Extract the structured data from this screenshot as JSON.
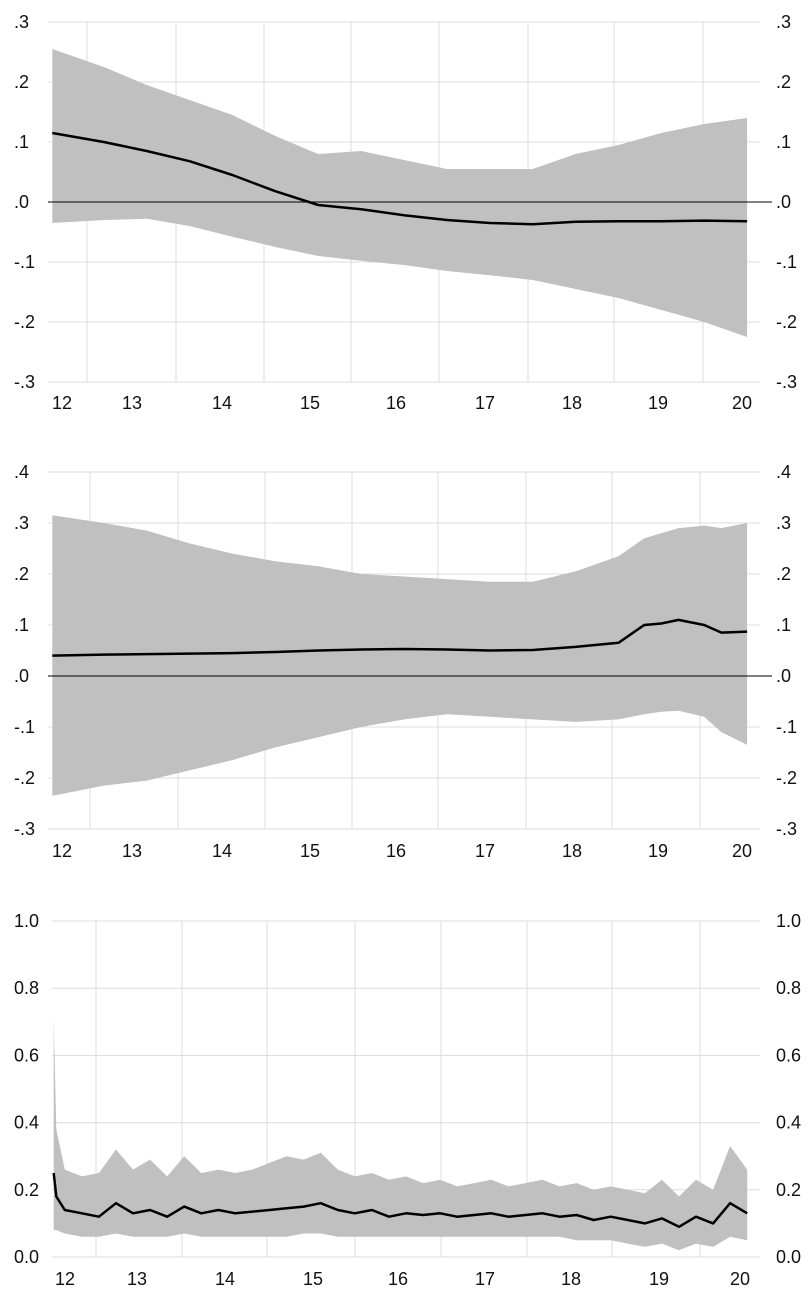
{
  "chart_data": [
    {
      "type": "area",
      "x_ticks": [
        "12",
        "13",
        "14",
        "15",
        "16",
        "17",
        "18",
        "19",
        "20"
      ],
      "y_ticks": [
        ".3",
        ".2",
        ".1",
        ".0",
        "-.1",
        "-.2",
        "-.3"
      ],
      "y_tick_values": [
        0.3,
        0.2,
        0.1,
        0.0,
        -0.1,
        -0.2,
        -0.3
      ],
      "ylim": [
        -0.3,
        0.3
      ],
      "xlim": [
        11.85,
        20.15
      ],
      "zero_line": true,
      "grid": true,
      "colors": {
        "band": "#c0c0c0",
        "line": "#000000",
        "grid": "#dcdcdc"
      },
      "series": [
        {
          "x": [
            11.9,
            12.5,
            13.0,
            13.5,
            14.0,
            14.5,
            15.0,
            15.5,
            16.0,
            16.5,
            17.0,
            17.5,
            18.0,
            18.5,
            19.0,
            19.5,
            20.0
          ],
          "value": [
            0.115,
            0.1,
            0.085,
            0.068,
            0.045,
            0.018,
            -0.005,
            -0.012,
            -0.022,
            -0.03,
            -0.035,
            -0.037,
            -0.033,
            -0.032,
            -0.032,
            -0.031,
            -0.032
          ],
          "upper": [
            0.255,
            0.225,
            0.195,
            0.17,
            0.145,
            0.11,
            0.08,
            0.085,
            0.07,
            0.055,
            0.055,
            0.055,
            0.08,
            0.095,
            0.115,
            0.13,
            0.14
          ],
          "lower": [
            -0.035,
            -0.03,
            -0.028,
            -0.04,
            -0.058,
            -0.075,
            -0.09,
            -0.098,
            -0.105,
            -0.115,
            -0.122,
            -0.13,
            -0.145,
            -0.16,
            -0.18,
            -0.2,
            -0.225
          ]
        }
      ]
    },
    {
      "type": "area",
      "x_ticks": [
        "12",
        "13",
        "14",
        "15",
        "16",
        "17",
        "18",
        "19",
        "20"
      ],
      "y_ticks": [
        ".4",
        ".3",
        ".2",
        ".1",
        ".0",
        "-.1",
        "-.2",
        "-.3"
      ],
      "y_tick_values": [
        0.4,
        0.3,
        0.2,
        0.1,
        0.0,
        -0.1,
        -0.2,
        -0.3
      ],
      "ylim": [
        -0.3,
        0.4
      ],
      "xlim": [
        11.85,
        20.15
      ],
      "zero_line": true,
      "grid": true,
      "colors": {
        "band": "#c0c0c0",
        "line": "#000000",
        "grid": "#dcdcdc"
      },
      "series": [
        {
          "x": [
            11.9,
            12.5,
            13.0,
            13.5,
            14.0,
            14.5,
            15.0,
            15.5,
            16.0,
            16.5,
            17.0,
            17.5,
            18.0,
            18.5,
            18.8,
            19.0,
            19.2,
            19.5,
            19.7,
            20.0
          ],
          "value": [
            0.04,
            0.042,
            0.043,
            0.044,
            0.045,
            0.047,
            0.05,
            0.052,
            0.053,
            0.052,
            0.05,
            0.051,
            0.057,
            0.065,
            0.1,
            0.103,
            0.11,
            0.1,
            0.085,
            0.087
          ],
          "upper": [
            0.315,
            0.3,
            0.285,
            0.26,
            0.24,
            0.225,
            0.215,
            0.2,
            0.195,
            0.19,
            0.185,
            0.185,
            0.205,
            0.235,
            0.27,
            0.28,
            0.29,
            0.295,
            0.29,
            0.3
          ],
          "lower": [
            -0.235,
            -0.215,
            -0.205,
            -0.185,
            -0.165,
            -0.14,
            -0.12,
            -0.1,
            -0.085,
            -0.075,
            -0.08,
            -0.085,
            -0.09,
            -0.085,
            -0.075,
            -0.07,
            -0.068,
            -0.08,
            -0.11,
            -0.135
          ]
        }
      ]
    },
    {
      "type": "area",
      "x_ticks": [
        "12",
        "13",
        "14",
        "15",
        "16",
        "17",
        "18",
        "19",
        "20"
      ],
      "y_ticks": [
        "1.0",
        "0.8",
        "0.6",
        "0.4",
        "0.2",
        "0.0"
      ],
      "y_tick_values": [
        1.0,
        0.8,
        0.6,
        0.4,
        0.2,
        0.0
      ],
      "ylim": [
        0.0,
        1.0
      ],
      "xlim": [
        11.85,
        20.15
      ],
      "zero_line": false,
      "grid": true,
      "colors": {
        "band": "#c0c0c0",
        "line": "#000000",
        "grid": "#dcdcdc"
      },
      "series": [
        {
          "x": [
            11.87,
            11.9,
            12.0,
            12.2,
            12.4,
            12.6,
            12.8,
            13.0,
            13.2,
            13.4,
            13.6,
            13.8,
            14.0,
            14.2,
            14.4,
            14.6,
            14.8,
            15.0,
            15.2,
            15.4,
            15.6,
            15.8,
            16.0,
            16.2,
            16.4,
            16.6,
            16.8,
            17.0,
            17.2,
            17.4,
            17.6,
            17.8,
            18.0,
            18.2,
            18.4,
            18.6,
            18.8,
            19.0,
            19.2,
            19.4,
            19.6,
            19.8,
            20.0
          ],
          "value": [
            0.25,
            0.18,
            0.14,
            0.13,
            0.12,
            0.16,
            0.13,
            0.14,
            0.12,
            0.15,
            0.13,
            0.14,
            0.13,
            0.135,
            0.14,
            0.145,
            0.15,
            0.16,
            0.14,
            0.13,
            0.14,
            0.12,
            0.13,
            0.125,
            0.13,
            0.12,
            0.125,
            0.13,
            0.12,
            0.125,
            0.13,
            0.12,
            0.125,
            0.11,
            0.12,
            0.11,
            0.1,
            0.115,
            0.09,
            0.12,
            0.1,
            0.16,
            0.13
          ],
          "upper": [
            0.71,
            0.38,
            0.26,
            0.24,
            0.25,
            0.32,
            0.26,
            0.29,
            0.24,
            0.3,
            0.25,
            0.26,
            0.25,
            0.26,
            0.28,
            0.3,
            0.29,
            0.31,
            0.26,
            0.24,
            0.25,
            0.23,
            0.24,
            0.22,
            0.23,
            0.21,
            0.22,
            0.23,
            0.21,
            0.22,
            0.23,
            0.21,
            0.22,
            0.2,
            0.21,
            0.2,
            0.19,
            0.23,
            0.18,
            0.23,
            0.2,
            0.33,
            0.26
          ],
          "lower": [
            0.08,
            0.08,
            0.07,
            0.06,
            0.06,
            0.07,
            0.06,
            0.06,
            0.06,
            0.07,
            0.06,
            0.06,
            0.06,
            0.06,
            0.06,
            0.06,
            0.07,
            0.07,
            0.06,
            0.06,
            0.06,
            0.06,
            0.06,
            0.06,
            0.06,
            0.06,
            0.06,
            0.06,
            0.06,
            0.06,
            0.06,
            0.06,
            0.05,
            0.05,
            0.05,
            0.04,
            0.03,
            0.04,
            0.02,
            0.04,
            0.03,
            0.06,
            0.05
          ]
        }
      ]
    }
  ]
}
